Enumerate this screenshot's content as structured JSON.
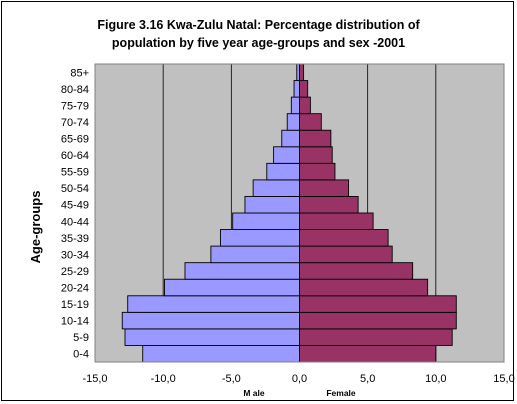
{
  "chart_data": {
    "type": "bar",
    "orientation": "horizontal",
    "subtype": "population-pyramid",
    "title": {
      "line1": "Figure 3.16 Kwa-Zulu Natal: Percentage distribution of",
      "line2": "population by five year age-groups and sex -2001"
    },
    "ylabel": "Age-groups",
    "categories": [
      "0-4",
      "5-9",
      "10-14",
      "15-19",
      "20-24",
      "25-29",
      "30-34",
      "35-39",
      "40-44",
      "45-49",
      "50-54",
      "55-59",
      "60-64",
      "65-69",
      "70-74",
      "75-79",
      "80-84",
      "85+"
    ],
    "series": [
      {
        "name": "Male",
        "values": [
          -11.5,
          -12.8,
          -13.0,
          -12.6,
          -9.9,
          -8.4,
          -6.5,
          -5.8,
          -4.9,
          -4.0,
          -3.4,
          -2.4,
          -1.9,
          -1.3,
          -0.9,
          -0.6,
          -0.4,
          -0.2
        ],
        "color": "#9999ff"
      },
      {
        "name": "Female",
        "values": [
          10.0,
          11.2,
          11.5,
          11.5,
          9.4,
          8.3,
          6.8,
          6.5,
          5.4,
          4.3,
          3.6,
          2.6,
          2.4,
          2.3,
          1.6,
          0.8,
          0.6,
          0.3
        ],
        "color": "#993366"
      }
    ],
    "xlim": [
      -15,
      15
    ],
    "xticks": [
      "-15,0",
      "-10,0",
      "-5,0",
      "0,0",
      "5,0",
      "10,0",
      "15,0"
    ],
    "xtick_values": [
      -15,
      -10,
      -5,
      0,
      5,
      10,
      15
    ],
    "xaxis_side_labels": [
      "M ale",
      "Female"
    ],
    "plot_background": "#c0c0c0",
    "gridlines": "vertical",
    "legend": "none"
  }
}
